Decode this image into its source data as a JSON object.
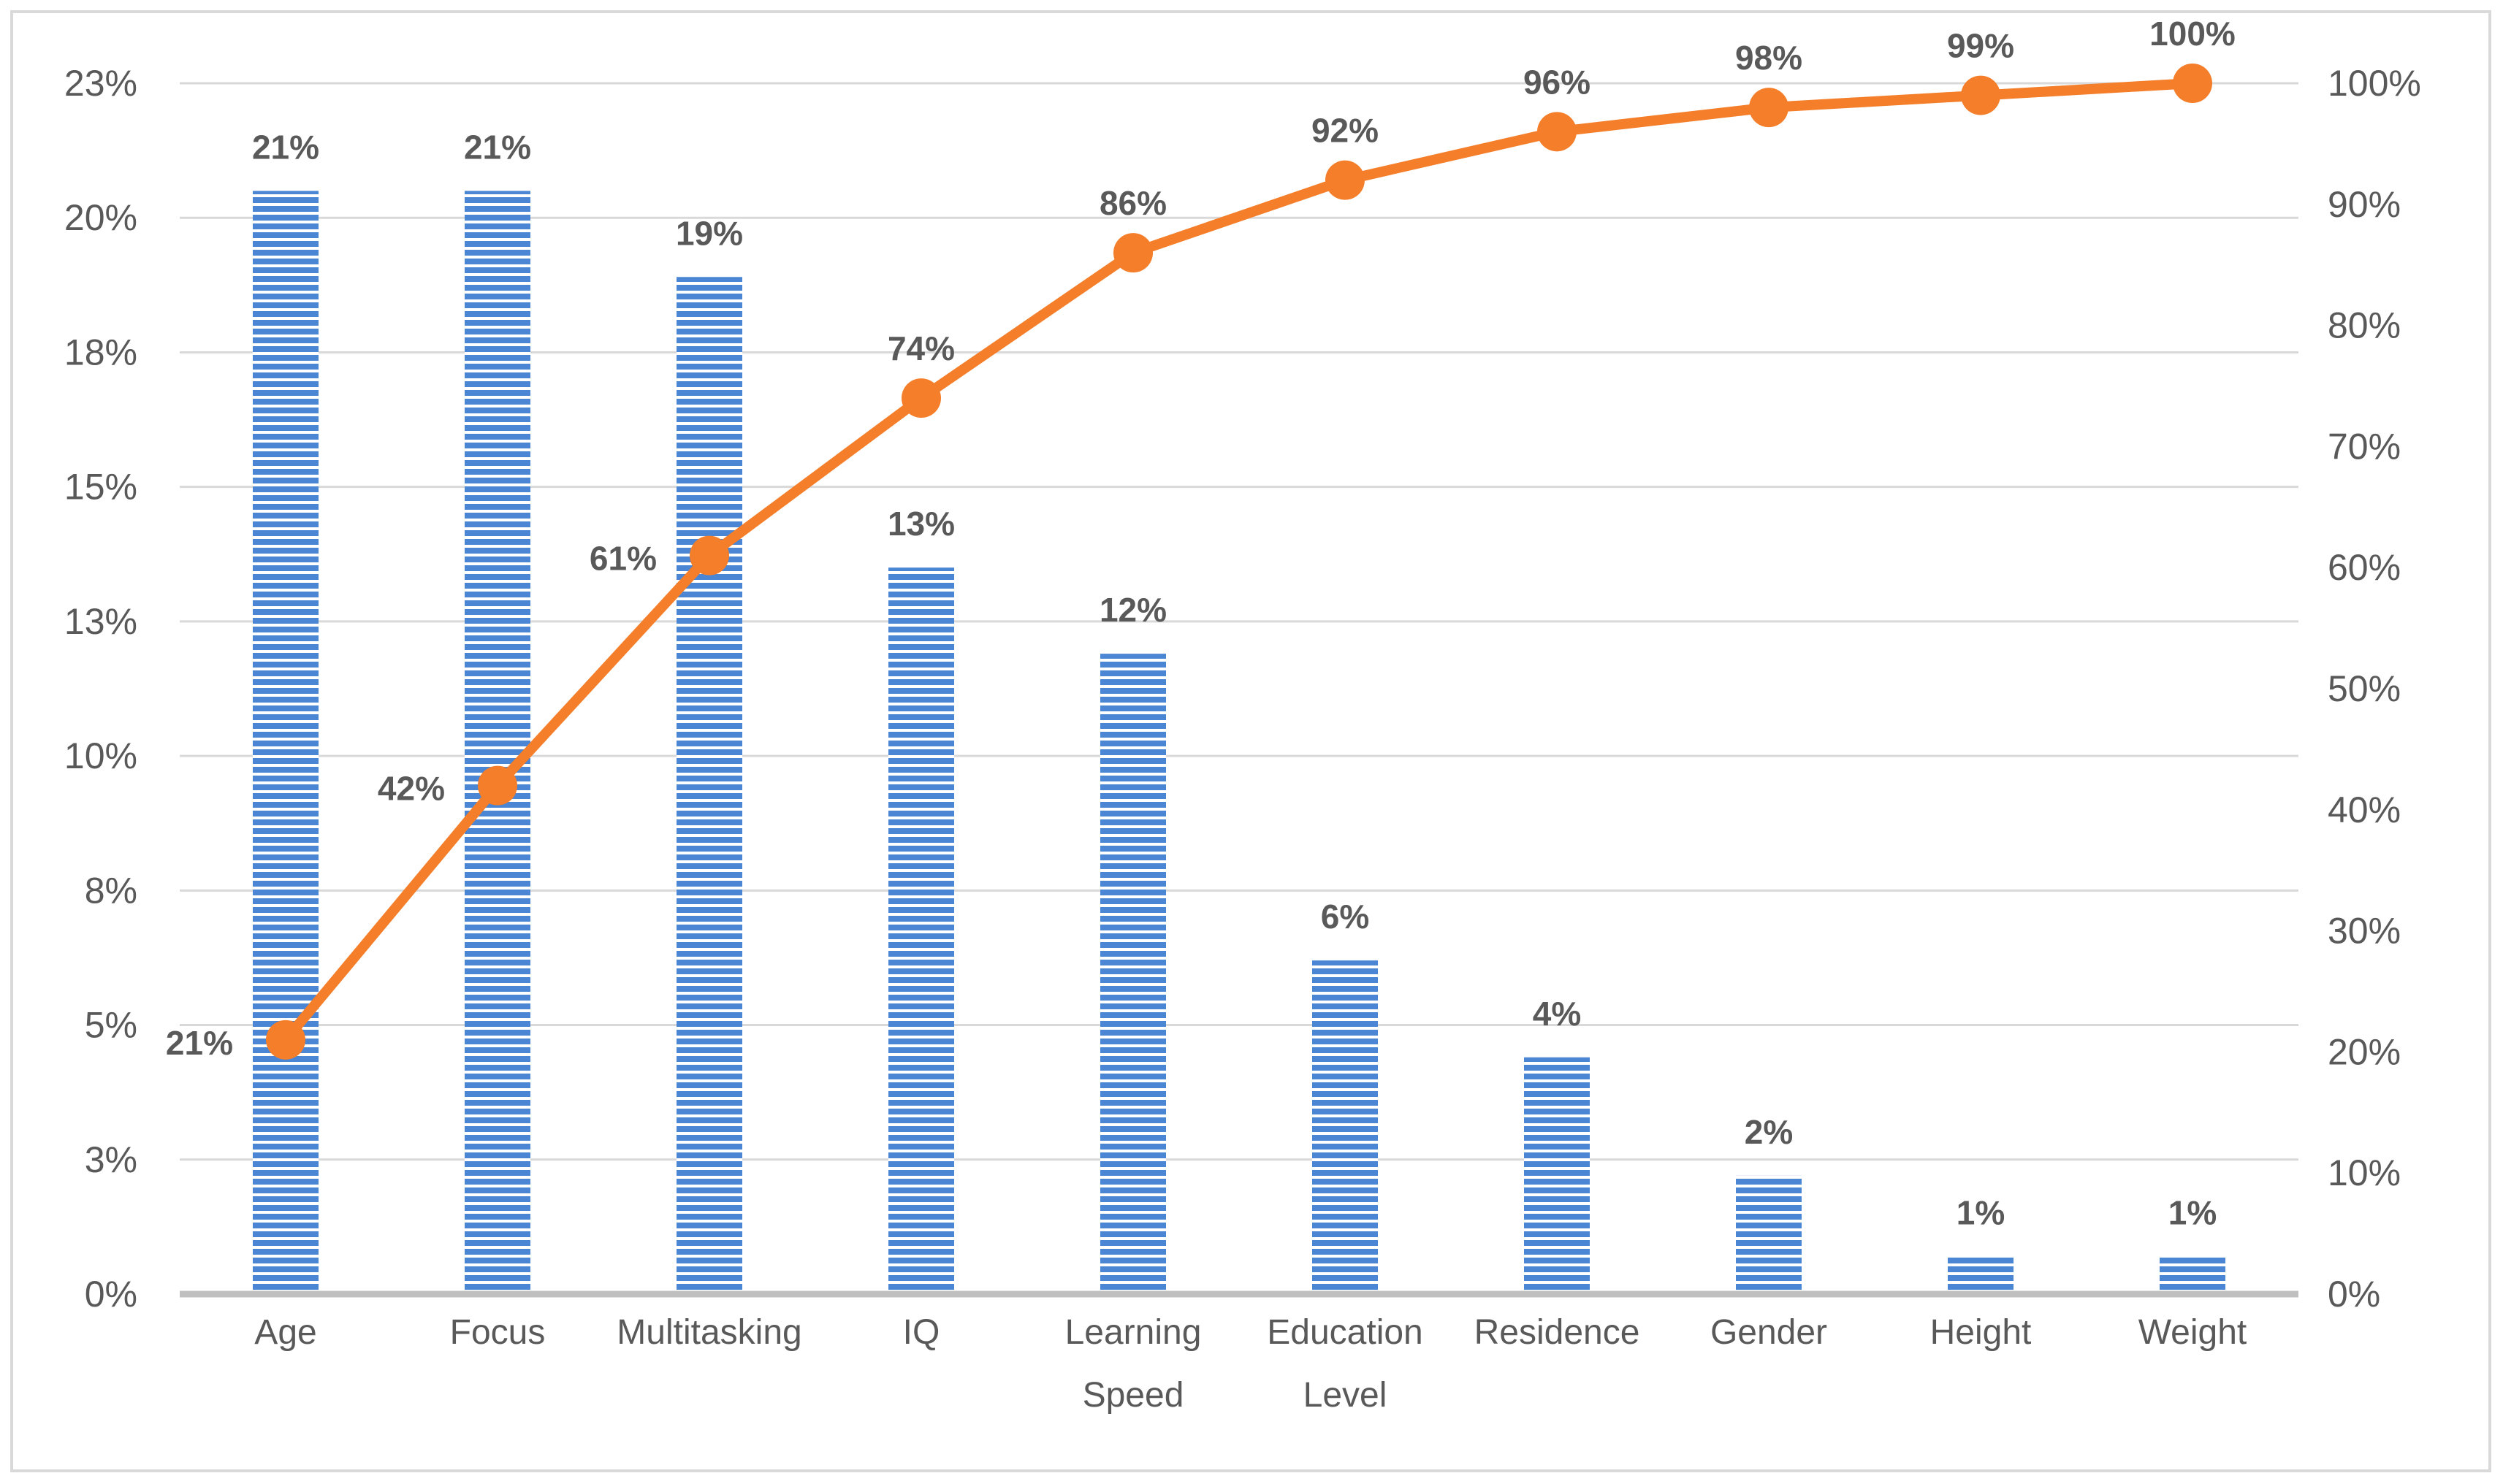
{
  "chart_data": {
    "type": "bar",
    "categories": [
      "Age",
      "Focus",
      "Multitasking",
      "IQ",
      "Learning Speed",
      "Education Level",
      "Residence",
      "Gender",
      "Height",
      "Weight"
    ],
    "series": [
      {
        "type": "bar",
        "axis": "left",
        "values": [
          20.5,
          20.5,
          18.9,
          13.5,
          11.9,
          6.2,
          4.4,
          2.2,
          0.7,
          0.7
        ],
        "data_labels": [
          "21%",
          "21%",
          "19%",
          "13%",
          "12%",
          "6%",
          "4%",
          "2%",
          "1%",
          "1%"
        ],
        "color": "#4a86d4"
      },
      {
        "type": "line",
        "axis": "right",
        "values": [
          21,
          42,
          61,
          74,
          86,
          92,
          96,
          98,
          99,
          100
        ],
        "data_labels": [
          "21%",
          "42%",
          "61%",
          "74%",
          "86%",
          "92%",
          "96%",
          "98%",
          "99%",
          "100%"
        ],
        "color": "#f47e2a"
      }
    ],
    "y_left": {
      "lim": [
        0,
        22.5
      ],
      "ticks": [
        0,
        2.5,
        5,
        7.5,
        10,
        12.5,
        15,
        17.5,
        20,
        22.5
      ],
      "tick_labels": [
        "0%",
        "3%",
        "5%",
        "8%",
        "10%",
        "13%",
        "15%",
        "18%",
        "20%",
        "23%"
      ]
    },
    "y_right": {
      "lim": [
        0,
        100
      ],
      "ticks": [
        0,
        10,
        20,
        30,
        40,
        50,
        60,
        70,
        80,
        90,
        100
      ],
      "tick_labels": [
        "0%",
        "10%",
        "20%",
        "30%",
        "40%",
        "50%",
        "60%",
        "70%",
        "80%",
        "90%",
        "100%"
      ]
    },
    "grid": true,
    "legend": "none",
    "title": "",
    "xlabel": "",
    "ylabel": ""
  }
}
